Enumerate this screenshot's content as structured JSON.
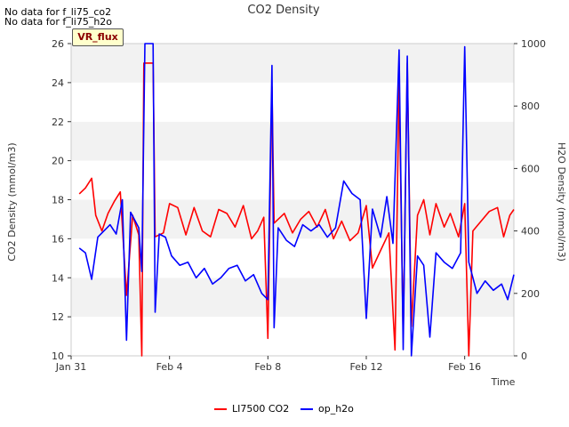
{
  "notices": [
    "No data for f_li75_co2",
    "No data for f_li75_h2o"
  ],
  "badge": "VR_flux",
  "chart_data": {
    "type": "line",
    "title": "CO2 Density",
    "xlabel": "Time",
    "ylabel_left": "CO2 Density (mmol/m3)",
    "ylabel_right": "H2O Density (mmol/m3)",
    "x_range": [
      "2024-01-31",
      "2024-02-18"
    ],
    "x_ticks": [
      {
        "date": "2024-01-31",
        "label": "Jan 31"
      },
      {
        "date": "2024-02-04",
        "label": "Feb 4"
      },
      {
        "date": "2024-02-08",
        "label": "Feb 8"
      },
      {
        "date": "2024-02-12",
        "label": "Feb 12"
      },
      {
        "date": "2024-02-16",
        "label": "Feb 16"
      }
    ],
    "ylim_left": [
      10,
      26
    ],
    "yticks_left": [
      10,
      12,
      14,
      16,
      18,
      20,
      22,
      24,
      26
    ],
    "ylim_right": [
      0,
      1000
    ],
    "yticks_right": [
      0,
      200,
      400,
      600,
      800,
      1000
    ],
    "grid": "horizontal bands",
    "legend_position": "bottom-center",
    "series": [
      {
        "name": "LI7500 CO2",
        "color": "#ff0000",
        "axis": "left",
        "points": [
          [
            "2024-01-31T08:00",
            18.3
          ],
          [
            "2024-01-31T14:00",
            18.6
          ],
          [
            "2024-01-31T20:00",
            19.1
          ],
          [
            "2024-02-01T00:00",
            17.2
          ],
          [
            "2024-02-01T06:00",
            16.4
          ],
          [
            "2024-02-01T12:00",
            17.3
          ],
          [
            "2024-02-01T18:00",
            17.9
          ],
          [
            "2024-02-02T00:00",
            18.4
          ],
          [
            "2024-02-02T06:00",
            13.1
          ],
          [
            "2024-02-02T12:00",
            17.2
          ],
          [
            "2024-02-02T18:00",
            16.2
          ],
          [
            "2024-02-02T21:00",
            10.0
          ],
          [
            "2024-02-02T23:00",
            25.0
          ],
          [
            "2024-02-03T08:00",
            25.0
          ],
          [
            "2024-02-03T10:00",
            16.1
          ],
          [
            "2024-02-03T18:00",
            16.3
          ],
          [
            "2024-02-04T00:00",
            17.8
          ],
          [
            "2024-02-04T08:00",
            17.6
          ],
          [
            "2024-02-04T16:00",
            16.2
          ],
          [
            "2024-02-05T00:00",
            17.6
          ],
          [
            "2024-02-05T08:00",
            16.4
          ],
          [
            "2024-02-05T16:00",
            16.1
          ],
          [
            "2024-02-06T00:00",
            17.5
          ],
          [
            "2024-02-06T08:00",
            17.3
          ],
          [
            "2024-02-06T16:00",
            16.6
          ],
          [
            "2024-02-07T00:00",
            17.7
          ],
          [
            "2024-02-07T08:00",
            16.0
          ],
          [
            "2024-02-07T14:00",
            16.4
          ],
          [
            "2024-02-07T20:00",
            17.1
          ],
          [
            "2024-02-08T00:00",
            10.9
          ],
          [
            "2024-02-08T04:00",
            23.8
          ],
          [
            "2024-02-08T06:00",
            16.8
          ],
          [
            "2024-02-08T16:00",
            17.3
          ],
          [
            "2024-02-09T00:00",
            16.3
          ],
          [
            "2024-02-09T08:00",
            17.0
          ],
          [
            "2024-02-09T16:00",
            17.4
          ],
          [
            "2024-02-10T00:00",
            16.6
          ],
          [
            "2024-02-10T08:00",
            17.5
          ],
          [
            "2024-02-10T16:00",
            16.0
          ],
          [
            "2024-02-11T00:00",
            16.9
          ],
          [
            "2024-02-11T08:00",
            15.9
          ],
          [
            "2024-02-11T16:00",
            16.3
          ],
          [
            "2024-02-12T00:00",
            17.7
          ],
          [
            "2024-02-12T06:00",
            14.5
          ],
          [
            "2024-02-12T14:00",
            15.4
          ],
          [
            "2024-02-12T22:00",
            16.3
          ],
          [
            "2024-02-13T04:00",
            10.3
          ],
          [
            "2024-02-13T08:00",
            24.0
          ],
          [
            "2024-02-13T12:00",
            11.0
          ],
          [
            "2024-02-13T16:00",
            25.0
          ],
          [
            "2024-02-13T20:00",
            11.5
          ],
          [
            "2024-02-14T02:00",
            17.2
          ],
          [
            "2024-02-14T08:00",
            18.0
          ],
          [
            "2024-02-14T14:00",
            16.2
          ],
          [
            "2024-02-14T20:00",
            17.8
          ],
          [
            "2024-02-15T04:00",
            16.6
          ],
          [
            "2024-02-15T10:00",
            17.3
          ],
          [
            "2024-02-15T18:00",
            16.1
          ],
          [
            "2024-02-16T00:00",
            17.8
          ],
          [
            "2024-02-16T04:00",
            10.0
          ],
          [
            "2024-02-16T08:00",
            16.4
          ],
          [
            "2024-02-16T16:00",
            16.9
          ],
          [
            "2024-02-17T00:00",
            17.4
          ],
          [
            "2024-02-17T08:00",
            17.6
          ],
          [
            "2024-02-17T14:00",
            16.1
          ],
          [
            "2024-02-17T20:00",
            17.2
          ],
          [
            "2024-02-18T00:00",
            17.5
          ]
        ]
      },
      {
        "name": "op_h2o",
        "color": "#0000ff",
        "axis": "right",
        "points": [
          [
            "2024-01-31T08:00",
            345
          ],
          [
            "2024-01-31T14:00",
            330
          ],
          [
            "2024-01-31T20:00",
            245
          ],
          [
            "2024-02-01T02:00",
            380
          ],
          [
            "2024-02-01T08:00",
            400
          ],
          [
            "2024-02-01T14:00",
            420
          ],
          [
            "2024-02-01T20:00",
            390
          ],
          [
            "2024-02-02T02:00",
            500
          ],
          [
            "2024-02-02T06:00",
            50
          ],
          [
            "2024-02-02T10:00",
            460
          ],
          [
            "2024-02-02T18:00",
            410
          ],
          [
            "2024-02-02T21:00",
            270
          ],
          [
            "2024-02-03T00:00",
            1000
          ],
          [
            "2024-02-03T08:00",
            1000
          ],
          [
            "2024-02-03T10:00",
            140
          ],
          [
            "2024-02-03T14:00",
            390
          ],
          [
            "2024-02-03T20:00",
            380
          ],
          [
            "2024-02-04T02:00",
            320
          ],
          [
            "2024-02-04T10:00",
            290
          ],
          [
            "2024-02-04T18:00",
            300
          ],
          [
            "2024-02-05T02:00",
            250
          ],
          [
            "2024-02-05T10:00",
            280
          ],
          [
            "2024-02-05T18:00",
            230
          ],
          [
            "2024-02-06T02:00",
            250
          ],
          [
            "2024-02-06T10:00",
            280
          ],
          [
            "2024-02-06T18:00",
            290
          ],
          [
            "2024-02-07T02:00",
            240
          ],
          [
            "2024-02-07T10:00",
            260
          ],
          [
            "2024-02-07T18:00",
            200
          ],
          [
            "2024-02-08T00:00",
            180
          ],
          [
            "2024-02-08T04:00",
            930
          ],
          [
            "2024-02-08T06:00",
            90
          ],
          [
            "2024-02-08T10:00",
            410
          ],
          [
            "2024-02-08T18:00",
            370
          ],
          [
            "2024-02-09T02:00",
            350
          ],
          [
            "2024-02-09T10:00",
            420
          ],
          [
            "2024-02-09T18:00",
            400
          ],
          [
            "2024-02-10T02:00",
            420
          ],
          [
            "2024-02-10T10:00",
            380
          ],
          [
            "2024-02-10T18:00",
            410
          ],
          [
            "2024-02-11T02:00",
            560
          ],
          [
            "2024-02-11T10:00",
            520
          ],
          [
            "2024-02-11T18:00",
            500
          ],
          [
            "2024-02-12T00:00",
            120
          ],
          [
            "2024-02-12T06:00",
            470
          ],
          [
            "2024-02-12T14:00",
            380
          ],
          [
            "2024-02-12T20:00",
            510
          ],
          [
            "2024-02-13T02:00",
            360
          ],
          [
            "2024-02-13T08:00",
            980
          ],
          [
            "2024-02-13T12:00",
            20
          ],
          [
            "2024-02-13T16:00",
            960
          ],
          [
            "2024-02-13T20:00",
            0
          ],
          [
            "2024-02-14T02:00",
            320
          ],
          [
            "2024-02-14T08:00",
            290
          ],
          [
            "2024-02-14T14:00",
            60
          ],
          [
            "2024-02-14T20:00",
            330
          ],
          [
            "2024-02-15T04:00",
            300
          ],
          [
            "2024-02-15T12:00",
            280
          ],
          [
            "2024-02-15T20:00",
            330
          ],
          [
            "2024-02-16T00:00",
            990
          ],
          [
            "2024-02-16T04:00",
            300
          ],
          [
            "2024-02-16T12:00",
            200
          ],
          [
            "2024-02-16T20:00",
            240
          ],
          [
            "2024-02-17T04:00",
            210
          ],
          [
            "2024-02-17T12:00",
            230
          ],
          [
            "2024-02-17T18:00",
            180
          ],
          [
            "2024-02-18T00:00",
            260
          ]
        ]
      }
    ]
  }
}
